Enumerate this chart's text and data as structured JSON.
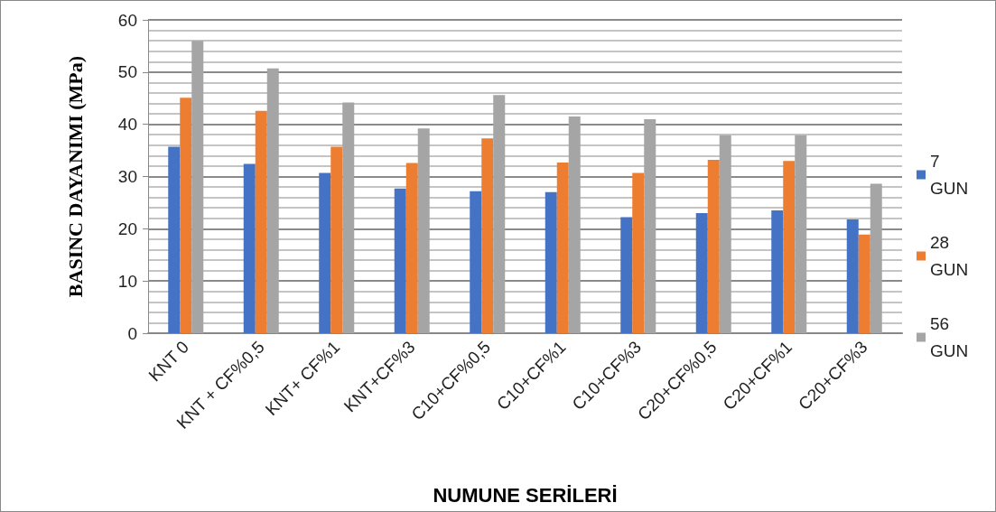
{
  "chart_data": {
    "type": "bar",
    "xlabel": "NUMUNE SERİLERİ",
    "ylabel": "BASINC DAYANIMI (MPa)",
    "categories": [
      "KNT 0",
      "KNT + CF%0,5",
      "KNT+ CF%1",
      "KNT+CF%3",
      "C10+CF%0,5",
      "C10+CF%1",
      "C10+CF%3",
      "C20+CF%0,5",
      "C20+CF%1",
      "C20+CF%3"
    ],
    "series": [
      {
        "name": "7 GUN",
        "color": "#4472c4",
        "values": [
          35.7,
          32.4,
          30.7,
          27.7,
          27.2,
          27.0,
          22.2,
          23.0,
          23.5,
          21.8
        ]
      },
      {
        "name": "28 GUN",
        "color": "#ed7d31",
        "values": [
          45.1,
          42.6,
          35.7,
          32.6,
          37.3,
          32.7,
          30.7,
          33.2,
          33.0,
          18.9
        ]
      },
      {
        "name": "56 GUN",
        "color": "#a5a5a5",
        "values": [
          56.0,
          50.7,
          44.2,
          39.2,
          45.6,
          41.5,
          41.0,
          37.9,
          37.9,
          28.6
        ]
      }
    ],
    "ylim": [
      0,
      60
    ],
    "yticks": [
      0,
      10,
      20,
      30,
      40,
      50,
      60
    ],
    "grid": "y",
    "legend": "right"
  }
}
